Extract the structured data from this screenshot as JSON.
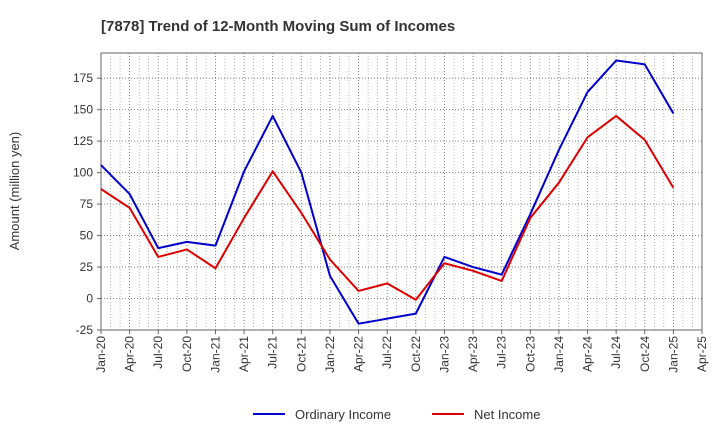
{
  "chart_data": {
    "type": "line",
    "title": "[7878]  Trend of 12-Month Moving Sum of Incomes",
    "xlabel": "",
    "ylabel": "Amount (million yen)",
    "ylim": [
      -25,
      195
    ],
    "yticks": [
      -25,
      0,
      25,
      50,
      75,
      100,
      125,
      150,
      175
    ],
    "grid": true,
    "legend_position": "bottom",
    "categories": [
      "Jan-20",
      "Apr-20",
      "Jul-20",
      "Oct-20",
      "Jan-21",
      "Apr-21",
      "Jul-21",
      "Oct-21",
      "Jan-22",
      "Apr-22",
      "Jul-22",
      "Oct-22",
      "Jan-23",
      "Apr-23",
      "Jul-23",
      "Oct-23",
      "Jan-24",
      "Apr-24",
      "Jul-24",
      "Oct-24",
      "Jan-25",
      "Apr-25"
    ],
    "series": [
      {
        "name": "Ordinary Income",
        "color": "#0000cc",
        "values": [
          106,
          83,
          40,
          45,
          42,
          101,
          145,
          100,
          18,
          -20,
          -16,
          -12,
          33,
          25,
          19,
          67,
          118,
          164,
          189,
          186,
          147,
          null
        ]
      },
      {
        "name": "Net Income",
        "color": "#dd0000",
        "values": [
          87,
          72,
          33,
          39,
          24,
          64,
          101,
          68,
          31,
          6,
          12,
          -1,
          28,
          22,
          14,
          64,
          92,
          128,
          145,
          126,
          88,
          null
        ]
      }
    ]
  }
}
